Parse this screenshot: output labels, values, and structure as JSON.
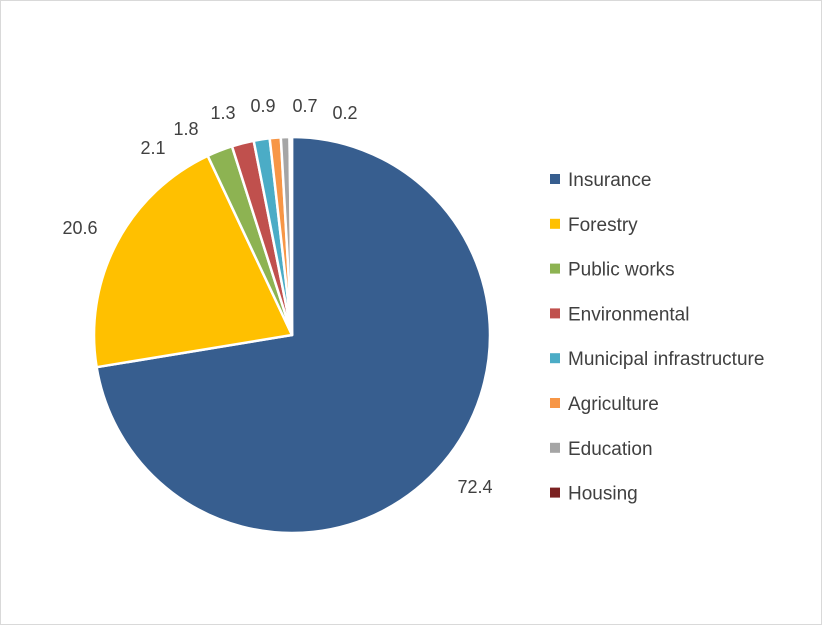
{
  "chart_data": {
    "type": "pie",
    "title": "",
    "legend_position": "right",
    "categories": [
      "Insurance",
      "Forestry",
      "Public works",
      "Environmental",
      "Municipal infrastructure",
      "Agriculture",
      "Education",
      "Housing"
    ],
    "values": [
      72.4,
      20.6,
      2.1,
      1.8,
      1.3,
      0.9,
      0.7,
      0.2
    ],
    "data_labels": [
      "72.4",
      "20.6",
      "2.1",
      "1.8",
      "1.3",
      "0.9",
      "0.7",
      "0.2"
    ],
    "colors": [
      "#375e8f",
      "#ffc000",
      "#8db352",
      "#c0504d",
      "#4bacc6",
      "#f79646",
      "#a5a5a5",
      "#7b2121"
    ]
  }
}
